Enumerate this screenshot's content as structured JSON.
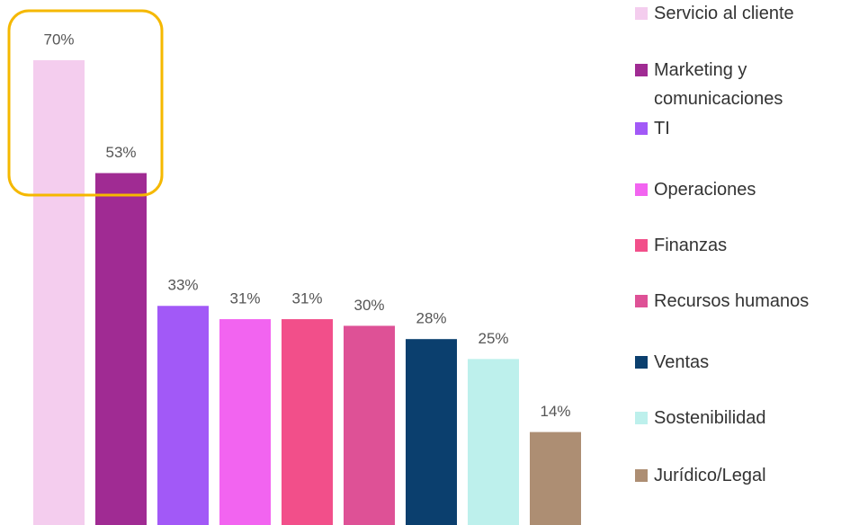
{
  "chart_data": {
    "type": "bar",
    "categories": [
      "Servicio al cliente",
      "Marketing y comunicaciones",
      "TI",
      "Operaciones",
      "Finanzas",
      "Recursos humanos",
      "Ventas",
      "Sostenibilidad",
      "Jurídico/Legal"
    ],
    "values": [
      70,
      53,
      33,
      31,
      31,
      30,
      28,
      25,
      14
    ],
    "value_labels": [
      "70%",
      "53%",
      "33%",
      "31%",
      "31%",
      "30%",
      "28%",
      "25%",
      "14%"
    ],
    "colors": [
      "#f4cdee",
      "#a02b93",
      "#a259f7",
      "#f264f0",
      "#f24f8a",
      "#de5196",
      "#0b3f6e",
      "#bdf0ec",
      "#ad8e73"
    ],
    "legend": "right"
  }
}
